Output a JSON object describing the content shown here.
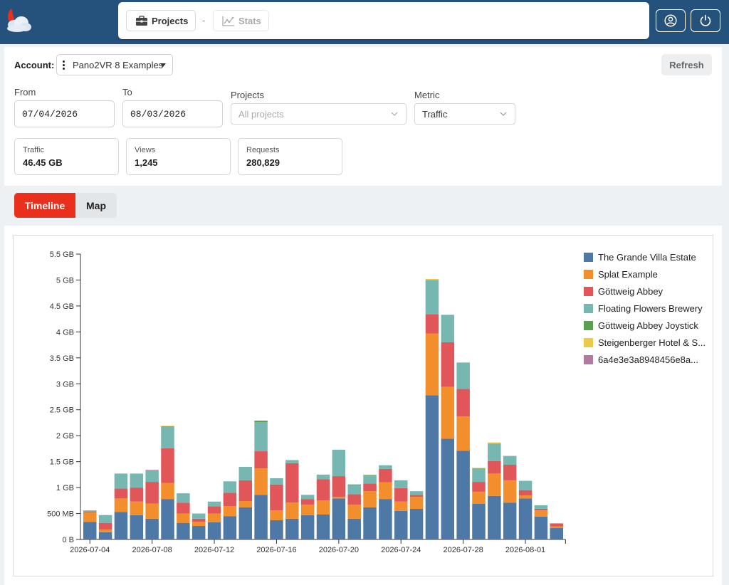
{
  "header": {
    "nav": {
      "projects_label": "Projects",
      "separator": "-",
      "stats_label": "Stats"
    },
    "icons": [
      "user-icon",
      "power-icon"
    ],
    "colors": {
      "bar": "#25517d",
      "accent": "#e8301c"
    }
  },
  "filters": {
    "account_label": "Account:",
    "account_value": "Pano2VR 8 Examples",
    "refresh_label": "Refresh",
    "from_label": "From",
    "from_value": "07/04/2026",
    "to_label": "To",
    "to_value": "08/03/2026",
    "projects_label": "Projects",
    "projects_placeholder": "All projects",
    "metric_label": "Metric",
    "metric_value": "Traffic"
  },
  "stats": [
    {
      "label": "Traffic",
      "value": "46.45 GB"
    },
    {
      "label": "Views",
      "value": "1,245"
    },
    {
      "label": "Requests",
      "value": "280,829"
    }
  ],
  "tabs": {
    "timeline": "Timeline",
    "map": "Map",
    "active": "timeline"
  },
  "chart_data": {
    "type": "bar",
    "stacked": true,
    "y_unit": "GB",
    "ylim": [
      0,
      5.5
    ],
    "y_ticks": [
      {
        "value": 0,
        "label": "0 B"
      },
      {
        "value": 0.5,
        "label": "500 MB"
      },
      {
        "value": 1,
        "label": "1 GB"
      },
      {
        "value": 1.5,
        "label": "1.5 GB"
      },
      {
        "value": 2,
        "label": "2 GB"
      },
      {
        "value": 2.5,
        "label": "2.5 GB"
      },
      {
        "value": 3,
        "label": "3 GB"
      },
      {
        "value": 3.5,
        "label": "3.5 GB"
      },
      {
        "value": 4,
        "label": "4 GB"
      },
      {
        "value": 4.5,
        "label": "4.5 GB"
      },
      {
        "value": 5,
        "label": "5 GB"
      },
      {
        "value": 5.5,
        "label": "5.5 GB"
      }
    ],
    "x_tick_labels": [
      "2026-07-04",
      "2026-07-08",
      "2026-07-12",
      "2026-07-16",
      "2026-07-20",
      "2026-07-24",
      "2026-07-28",
      "2026-08-01"
    ],
    "categories": [
      "2026-07-04",
      "2026-07-05",
      "2026-07-06",
      "2026-07-07",
      "2026-07-08",
      "2026-07-09",
      "2026-07-10",
      "2026-07-11",
      "2026-07-12",
      "2026-07-13",
      "2026-07-14",
      "2026-07-15",
      "2026-07-16",
      "2026-07-17",
      "2026-07-18",
      "2026-07-19",
      "2026-07-20",
      "2026-07-21",
      "2026-07-22",
      "2026-07-23",
      "2026-07-24",
      "2026-07-25",
      "2026-07-26",
      "2026-07-27",
      "2026-07-28",
      "2026-07-29",
      "2026-07-30",
      "2026-07-31",
      "2026-08-01",
      "2026-08-02",
      "2026-08-03"
    ],
    "legend_position": "right",
    "series": [
      {
        "name": "The Grande Villa Estate",
        "color": "#4e79a7",
        "values": [
          0.34,
          0.14,
          0.53,
          0.47,
          0.4,
          0.78,
          0.32,
          0.26,
          0.33,
          0.45,
          0.62,
          0.86,
          0.37,
          0.4,
          0.47,
          0.48,
          0.79,
          0.4,
          0.62,
          0.78,
          0.55,
          0.59,
          2.78,
          1.94,
          1.71,
          0.69,
          0.84,
          0.71,
          0.79,
          0.44,
          0.22
        ]
      },
      {
        "name": "Splat Example",
        "color": "#f28e2b",
        "values": [
          0.18,
          0.05,
          0.26,
          0.26,
          0.29,
          0.31,
          0.18,
          0.08,
          0.17,
          0.19,
          0.12,
          0.51,
          0.19,
          0.31,
          0.2,
          0.27,
          0.03,
          0.27,
          0.31,
          0.32,
          0.18,
          0.23,
          1.19,
          1.0,
          0.66,
          0.23,
          0.43,
          0.43,
          0.06,
          0.12,
          0.03
        ]
      },
      {
        "name": "Göttweig Abbey",
        "color": "#e15759",
        "values": [
          0.02,
          0.13,
          0.19,
          0.27,
          0.42,
          0.67,
          0.21,
          0.06,
          0.14,
          0.26,
          0.4,
          0.33,
          0.5,
          0.76,
          0.11,
          0.41,
          0.4,
          0.2,
          0.15,
          0.26,
          0.26,
          0.04,
          0.37,
          0.86,
          0.53,
          0.19,
          0.24,
          0.3,
          0.1,
          0.03,
          0.06
        ]
      },
      {
        "name": "Floating Flowers Brewery",
        "color": "#76b7b2",
        "values": [
          0.02,
          0.15,
          0.29,
          0.27,
          0.22,
          0.41,
          0.18,
          0.1,
          0.09,
          0.22,
          0.26,
          0.56,
          0.12,
          0.06,
          0.08,
          0.09,
          0.51,
          0.18,
          0.15,
          0.07,
          0.15,
          0.07,
          0.66,
          0.53,
          0.51,
          0.25,
          0.34,
          0.17,
          0.18,
          0.07,
          0.0
        ]
      },
      {
        "name": "Göttweig Abbey Joystick",
        "color": "#59a14f",
        "values": [
          0.0,
          0.0,
          0.0,
          0.0,
          0.0,
          0.01,
          0.0,
          0.0,
          0.0,
          0.0,
          0.0,
          0.03,
          0.0,
          0.0,
          0.0,
          0.0,
          0.0,
          0.01,
          0.01,
          0.0,
          0.0,
          0.0,
          0.0,
          0.0,
          0.0,
          0.01,
          0.0,
          0.0,
          0.0,
          0.0,
          0.0
        ]
      },
      {
        "name": "Steigenberger Hotel & S...",
        "color": "#edc948",
        "values": [
          0.0,
          0.0,
          0.0,
          0.0,
          0.0,
          0.01,
          0.0,
          0.0,
          0.0,
          0.0,
          0.0,
          0.0,
          0.0,
          0.0,
          0.0,
          0.0,
          0.0,
          0.0,
          0.01,
          0.0,
          0.0,
          0.0,
          0.02,
          0.0,
          0.0,
          0.01,
          0.02,
          0.0,
          0.0,
          0.0,
          0.0
        ]
      },
      {
        "name": "6a4e3e3a8948456e8a...",
        "color": "#b07aa1",
        "values": [
          0.0,
          0.0,
          0.0,
          0.0,
          0.01,
          0.0,
          0.0,
          0.0,
          0.0,
          0.0,
          0.0,
          0.0,
          0.0,
          0.0,
          0.0,
          0.0,
          0.0,
          0.0,
          0.0,
          0.0,
          0.0,
          0.0,
          0.0,
          0.0,
          0.0,
          0.0,
          0.0,
          0.0,
          0.0,
          0.0,
          0.0
        ]
      }
    ]
  }
}
